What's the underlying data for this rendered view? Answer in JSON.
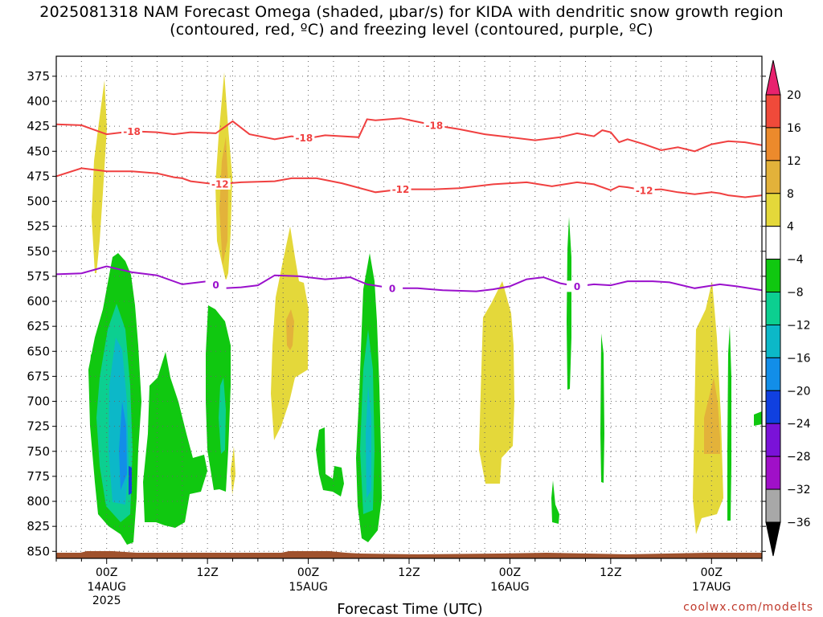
{
  "chart_data": {
    "type": "heatmap",
    "title": "2025081318 NAM Forecast Omega (shaded, μbar/s) for KIDA with dendritic snow growth region (contoured, red, ºC) and freezing level (contoured, purple, ºC)",
    "xlabel": "Forecast Time (UTC)",
    "ylabel": "",
    "y_axis": {
      "ticks": [
        375,
        400,
        425,
        450,
        475,
        500,
        525,
        550,
        575,
        600,
        625,
        650,
        675,
        700,
        725,
        750,
        775,
        800,
        825,
        850
      ],
      "range": [
        355,
        857
      ],
      "inverted": true
    },
    "x_axis": {
      "ticks": [
        {
          "label": "00Z",
          "sub": "14AUG",
          "sub2": "2025",
          "hour": 6
        },
        {
          "label": "12Z",
          "sub": "",
          "sub2": "",
          "hour": 18
        },
        {
          "label": "00Z",
          "sub": "15AUG",
          "sub2": "",
          "hour": 30
        },
        {
          "label": "12Z",
          "sub": "",
          "sub2": "",
          "hour": 42
        },
        {
          "label": "00Z",
          "sub": "16AUG",
          "sub2": "",
          "hour": 54
        },
        {
          "label": "12Z",
          "sub": "",
          "sub2": "",
          "hour": 66
        },
        {
          "label": "00Z",
          "sub": "17AUG",
          "sub2": "",
          "hour": 78
        }
      ],
      "range": [
        0,
        84
      ]
    },
    "grid": true,
    "colorbar": {
      "labels": [
        "20",
        "16",
        "12",
        "8",
        "4",
        "−4",
        "−8",
        "−12",
        "−16",
        "−20",
        "−24",
        "−28",
        "−32",
        "−36"
      ],
      "colors": [
        "#e8226e",
        "#f04a3a",
        "#ec8a2c",
        "#e3b23a",
        "#e4d83a",
        "#ffffff",
        "#10c810",
        "#0ccf90",
        "#0cb8c8",
        "#128ee8",
        "#1040e0",
        "#7a12d8",
        "#a010c8",
        "#a8a8a8",
        "#000000"
      ]
    },
    "contours": {
      "minus18": {
        "label": "-18",
        "color": "#f04040",
        "points": [
          [
            0,
            423
          ],
          [
            3,
            424
          ],
          [
            6,
            433
          ],
          [
            9,
            430
          ],
          [
            12,
            431
          ],
          [
            14,
            433
          ],
          [
            16,
            431
          ],
          [
            19,
            432
          ],
          [
            21,
            420
          ],
          [
            23,
            433
          ],
          [
            26,
            438
          ],
          [
            28,
            435
          ],
          [
            30,
            437
          ],
          [
            32,
            434
          ],
          [
            36,
            436
          ],
          [
            37,
            418
          ],
          [
            38,
            419
          ],
          [
            41,
            417
          ],
          [
            45,
            424
          ],
          [
            48,
            428
          ],
          [
            51,
            433
          ],
          [
            54,
            436
          ],
          [
            57,
            439
          ],
          [
            60,
            436
          ],
          [
            62,
            432
          ],
          [
            64,
            435
          ],
          [
            65,
            429
          ],
          [
            66,
            431
          ],
          [
            67,
            441
          ],
          [
            68,
            438
          ],
          [
            70,
            443
          ],
          [
            72,
            449
          ],
          [
            74,
            446
          ],
          [
            76,
            450
          ],
          [
            78,
            443
          ],
          [
            80,
            440
          ],
          [
            82,
            441
          ],
          [
            84,
            444
          ]
        ]
      },
      "minus12": {
        "label": "-12",
        "color": "#f04040",
        "points": [
          [
            0,
            475
          ],
          [
            3,
            467
          ],
          [
            6,
            470
          ],
          [
            9,
            470
          ],
          [
            12,
            472
          ],
          [
            14,
            476
          ],
          [
            15,
            477
          ],
          [
            16,
            480
          ],
          [
            19,
            483
          ],
          [
            22,
            481
          ],
          [
            26,
            480
          ],
          [
            28,
            477
          ],
          [
            31,
            477
          ],
          [
            34,
            482
          ],
          [
            38,
            491
          ],
          [
            41,
            488
          ],
          [
            45,
            488
          ],
          [
            48,
            487
          ],
          [
            52,
            483
          ],
          [
            56,
            481
          ],
          [
            59,
            485
          ],
          [
            62,
            481
          ],
          [
            64,
            483
          ],
          [
            66,
            489
          ],
          [
            67,
            485
          ],
          [
            68,
            486
          ],
          [
            70,
            489
          ],
          [
            72,
            488
          ],
          [
            74,
            491
          ],
          [
            76,
            493
          ],
          [
            78,
            491
          ],
          [
            79,
            492
          ],
          [
            80,
            494
          ],
          [
            82,
            496
          ],
          [
            84,
            494
          ]
        ]
      },
      "zero": {
        "label": "0",
        "color": "#9a10cc",
        "points": [
          [
            0,
            573
          ],
          [
            3,
            572
          ],
          [
            6,
            565
          ],
          [
            9,
            571
          ],
          [
            12,
            574
          ],
          [
            15,
            583
          ],
          [
            18,
            580
          ],
          [
            20,
            587
          ],
          [
            22,
            586
          ],
          [
            24,
            584
          ],
          [
            26,
            574
          ],
          [
            29,
            575
          ],
          [
            32,
            578
          ],
          [
            35,
            576
          ],
          [
            37,
            583
          ],
          [
            40,
            587
          ],
          [
            43,
            587
          ],
          [
            46,
            589
          ],
          [
            50,
            590
          ],
          [
            52,
            588
          ],
          [
            54,
            585
          ],
          [
            56,
            578
          ],
          [
            58,
            576
          ],
          [
            60,
            582
          ],
          [
            62,
            585
          ],
          [
            64,
            583
          ],
          [
            66,
            584
          ],
          [
            68,
            580
          ],
          [
            71,
            580
          ],
          [
            73,
            581
          ],
          [
            76,
            587
          ],
          [
            79,
            583
          ],
          [
            81,
            585
          ],
          [
            84,
            589
          ]
        ]
      }
    },
    "source": "coolwx.com/modelts"
  }
}
